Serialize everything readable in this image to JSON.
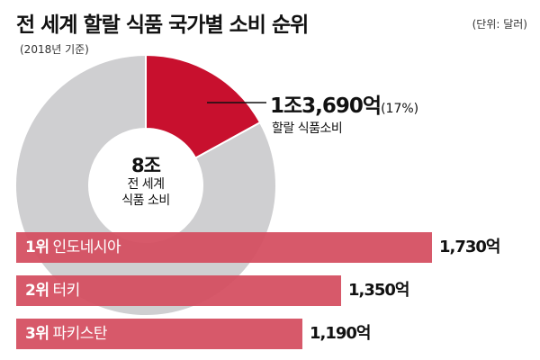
{
  "header": {
    "title": "전 세계 할랄 식품 국가별 소비 순위",
    "unit": "(단위: 달러)",
    "subtitle": "(2018년 기준)"
  },
  "donut": {
    "center_value": "8조",
    "center_caption_line1": "전 세계",
    "center_caption_line2": "식품 소비",
    "highlight_value": "1조3,690억",
    "highlight_percent_text": "(17%)",
    "highlight_label": "할랄 식품소비"
  },
  "colors": {
    "highlight": "#c8102e",
    "remainder": "#cfcfd1",
    "bar": "#d44c5f"
  },
  "chart_data": [
    {
      "type": "pie",
      "categories": [
        "할랄 식품소비",
        ""
      ],
      "values": [
        17,
        83
      ],
      "title": "",
      "center_total": "8조"
    },
    {
      "type": "bar",
      "orientation": "horizontal",
      "categories": [
        "인도네시아",
        "터키",
        "파키스탄"
      ],
      "ranks": [
        "1위",
        "2위",
        "3위"
      ],
      "values": [
        1730,
        1350,
        1190
      ],
      "value_labels": [
        "1,730억",
        "1,350억",
        "1,190억"
      ],
      "xlabel": "",
      "ylabel": ""
    }
  ]
}
